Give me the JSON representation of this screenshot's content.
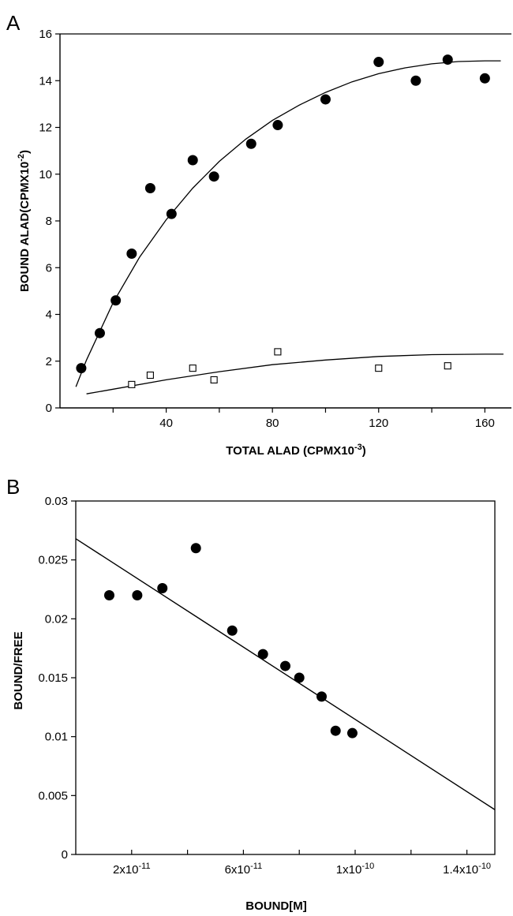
{
  "chart_data": [
    {
      "panel": "A",
      "type": "scatter",
      "xlabel": "TOTAL ALAD (CPMX10",
      "xlabel_exp": "-3",
      "xlabel_suffix": ")",
      "ylabel": "BOUND ALAD(CPMX10",
      "ylabel_exp": "-2",
      "ylabel_suffix": ")",
      "xlim": [
        0,
        170
      ],
      "ylim": [
        0,
        16
      ],
      "x_ticks": [
        20,
        40,
        60,
        80,
        100,
        120,
        140,
        160
      ],
      "x_tick_labels": [
        {
          "value": 40,
          "label": "40"
        },
        {
          "value": 80,
          "label": "80"
        },
        {
          "value": 120,
          "label": "120"
        },
        {
          "value": 160,
          "label": "160"
        }
      ],
      "y_ticks": [
        0,
        2,
        4,
        6,
        8,
        10,
        12,
        14,
        16
      ],
      "y_tick_labels": [
        "0",
        "2",
        "4",
        "6",
        "8",
        "10",
        "12",
        "14",
        "16"
      ],
      "series": [
        {
          "marker": "filled-circle",
          "x": [
            8,
            15,
            21,
            27,
            34,
            42,
            50,
            58,
            72,
            82,
            100,
            120,
            134,
            146,
            160
          ],
          "y": [
            1.7,
            3.2,
            4.6,
            6.6,
            9.4,
            8.3,
            10.6,
            9.9,
            11.3,
            12.1,
            13.2,
            14.8,
            14.0,
            14.9,
            14.1
          ]
        },
        {
          "marker": "open-square",
          "x": [
            27,
            34,
            50,
            58,
            82,
            120,
            146
          ],
          "y": [
            1.0,
            1.4,
            1.7,
            1.2,
            2.4,
            1.7,
            1.8
          ]
        }
      ],
      "fit_curves": [
        {
          "x": [
            6,
            10,
            20,
            30,
            40,
            50,
            60,
            70,
            80,
            90,
            100,
            110,
            120,
            130,
            140,
            150,
            160,
            166
          ],
          "y": [
            0.9,
            2.05,
            4.5,
            6.45,
            8.05,
            9.4,
            10.55,
            11.5,
            12.3,
            12.95,
            13.5,
            13.95,
            14.3,
            14.55,
            14.72,
            14.82,
            14.85,
            14.85
          ]
        },
        {
          "x": [
            10,
            20,
            40,
            60,
            80,
            100,
            120,
            140,
            160,
            167
          ],
          "y": [
            0.6,
            0.8,
            1.2,
            1.55,
            1.85,
            2.05,
            2.2,
            2.28,
            2.3,
            2.3
          ]
        }
      ]
    },
    {
      "panel": "B",
      "type": "scatter",
      "xlabel": "BOUND[M]",
      "ylabel": "BOUND/FREE",
      "xlim": [
        0,
        1.5e-10
      ],
      "ylim": [
        0,
        0.03
      ],
      "x_ticks": [
        2e-11,
        4e-11,
        6e-11,
        8e-11,
        1e-10,
        1.2e-10,
        1.4e-10
      ],
      "x_tick_labels": [
        {
          "value": 2e-11,
          "label": "2x10",
          "exp": "-11"
        },
        {
          "value": 6e-11,
          "label": "6x10",
          "exp": "-11"
        },
        {
          "value": 1e-10,
          "label": "1x10",
          "exp": "-10"
        },
        {
          "value": 1.4e-10,
          "label": "1.4x10",
          "exp": "-10"
        }
      ],
      "y_ticks": [
        0,
        0.005,
        0.01,
        0.015,
        0.02,
        0.025,
        0.03
      ],
      "y_tick_labels": [
        "0",
        "0.005",
        "0.01",
        "0.015",
        "0.02",
        "0.025",
        "0.03"
      ],
      "series": [
        {
          "marker": "filled-circle",
          "x": [
            1.2e-11,
            2.2e-11,
            3.1e-11,
            4.3e-11,
            5.6e-11,
            6.7e-11,
            7.5e-11,
            8e-11,
            8.8e-11,
            9.3e-11,
            9.9e-11
          ],
          "y": [
            0.022,
            0.022,
            0.0226,
            0.026,
            0.019,
            0.017,
            0.016,
            0.015,
            0.0134,
            0.0105,
            0.0103
          ]
        }
      ],
      "fit_line": {
        "x": [
          0,
          1.5e-10
        ],
        "y": [
          0.0268,
          0.0038
        ]
      }
    }
  ],
  "panel_labels": {
    "a": "A",
    "b": "B"
  }
}
